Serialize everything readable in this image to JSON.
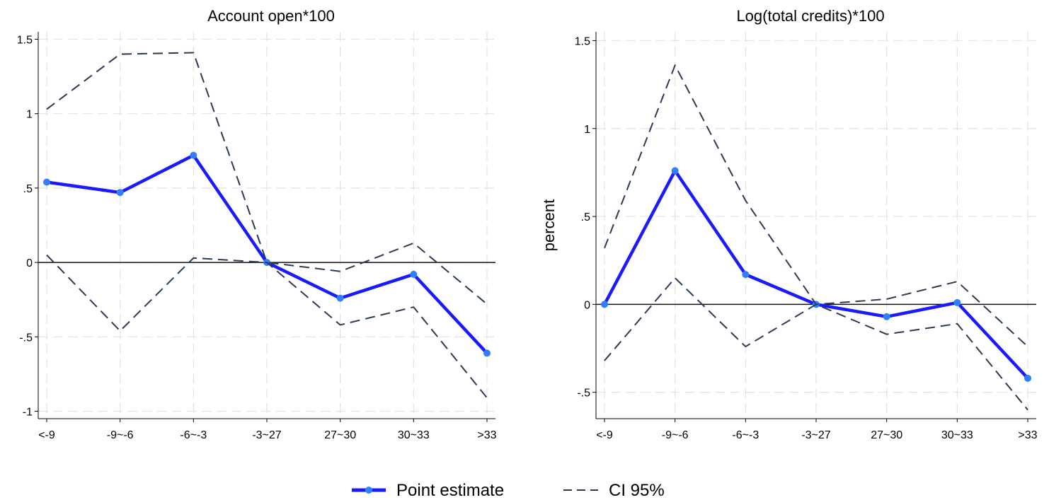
{
  "chart_data": [
    {
      "type": "line",
      "title": "Account open*100",
      "xlabel": "",
      "ylabel": "",
      "categories": [
        "<-9",
        "-9~-6",
        "-6~-3",
        "-3~27",
        "27~30",
        "30~33",
        ">33"
      ],
      "ylim": [
        -1.05,
        1.55
      ],
      "yticks": [
        -1,
        -0.5,
        0,
        0.5,
        1,
        1.5
      ],
      "ytick_labels": [
        "-1",
        "-.5",
        "0",
        ".5",
        "1",
        "1.5"
      ],
      "grid": true,
      "series": [
        {
          "name": "Point estimate",
          "style": "solid",
          "markers": true,
          "color": "#1a1aff",
          "values": [
            0.54,
            0.47,
            0.72,
            0.0,
            -0.24,
            -0.08,
            -0.61
          ]
        },
        {
          "name": "CI 95%",
          "style": "dashed",
          "color": "#2b3a55",
          "values": [
            1.03,
            1.4,
            1.41,
            0.0,
            -0.06,
            0.13,
            -0.28
          ]
        },
        {
          "name": "CI 95%",
          "style": "dashed",
          "color": "#2b3a55",
          "values": [
            0.05,
            -0.46,
            0.03,
            0.0,
            -0.42,
            -0.3,
            -0.91
          ]
        }
      ]
    },
    {
      "type": "line",
      "title": "Log(total credits)*100",
      "xlabel": "",
      "ylabel": "percent",
      "categories": [
        "<-9",
        "-9~-6",
        "-6~-3",
        "-3~27",
        "27~30",
        "30~33",
        ">33"
      ],
      "ylim": [
        -0.65,
        1.55
      ],
      "yticks": [
        -0.5,
        0,
        0.5,
        1,
        1.5
      ],
      "ytick_labels": [
        "-.5",
        "0",
        ".5",
        "1",
        "1.5"
      ],
      "grid": true,
      "series": [
        {
          "name": "Point estimate",
          "style": "solid",
          "markers": true,
          "color": "#1a1aff",
          "values": [
            0.0,
            0.76,
            0.17,
            0.0,
            -0.07,
            0.01,
            -0.42
          ]
        },
        {
          "name": "CI 95%",
          "style": "dashed",
          "color": "#2b3a55",
          "values": [
            0.32,
            1.36,
            0.59,
            0.0,
            0.03,
            0.13,
            -0.24
          ]
        },
        {
          "name": "CI 95%",
          "style": "dashed",
          "color": "#2b3a55",
          "values": [
            -0.32,
            0.15,
            -0.24,
            0.0,
            -0.17,
            -0.11,
            -0.6
          ]
        }
      ]
    }
  ],
  "legend": {
    "position": "bottom-center",
    "items": [
      {
        "label": "Point estimate",
        "style": "solid",
        "color": "#1a1aff"
      },
      {
        "label": "CI 95%",
        "style": "dashed",
        "color": "#2b3a55"
      }
    ]
  }
}
